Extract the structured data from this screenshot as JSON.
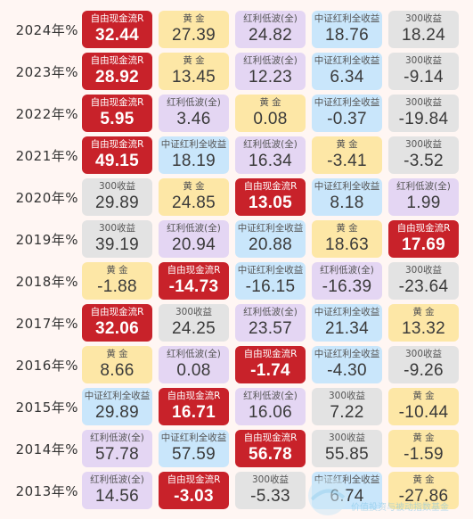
{
  "chart_data": {
    "type": "table",
    "years": [
      "2024年%",
      "2023年%",
      "2022年%",
      "2021年%",
      "2020年%",
      "2019年%",
      "2018年%",
      "2017年%",
      "2016年%",
      "2015年%",
      "2014年%",
      "2013年%"
    ],
    "rows": [
      [
        {
          "label": "自由现金流R",
          "value": "32.44"
        },
        {
          "label": "黄 金",
          "value": "27.39"
        },
        {
          "label": "红利低波(全)",
          "value": "24.82"
        },
        {
          "label": "中证红利全收益",
          "value": "18.76"
        },
        {
          "label": "300收益",
          "value": "18.24"
        }
      ],
      [
        {
          "label": "自由现金流R",
          "value": "28.92"
        },
        {
          "label": "黄 金",
          "value": "13.45"
        },
        {
          "label": "红利低波(全)",
          "value": "12.23"
        },
        {
          "label": "中证红利全收益",
          "value": "6.34"
        },
        {
          "label": "300收益",
          "value": "-9.14"
        }
      ],
      [
        {
          "label": "自由现金流R",
          "value": "5.95"
        },
        {
          "label": "红利低波(全)",
          "value": "3.46"
        },
        {
          "label": "黄 金",
          "value": "0.08"
        },
        {
          "label": "中证红利全收益",
          "value": "-0.37"
        },
        {
          "label": "300收益",
          "value": "-19.84"
        }
      ],
      [
        {
          "label": "自由现金流R",
          "value": "49.15"
        },
        {
          "label": "中证红利全收益",
          "value": "18.19"
        },
        {
          "label": "红利低波(全)",
          "value": "16.34"
        },
        {
          "label": "黄 金",
          "value": "-3.41"
        },
        {
          "label": "300收益",
          "value": "-3.52"
        }
      ],
      [
        {
          "label": "300收益",
          "value": "29.89"
        },
        {
          "label": "黄 金",
          "value": "24.85"
        },
        {
          "label": "自由现金流R",
          "value": "13.05"
        },
        {
          "label": "中证红利全收益",
          "value": "8.18"
        },
        {
          "label": "红利低波(全)",
          "value": "1.99"
        }
      ],
      [
        {
          "label": "300收益",
          "value": "39.19"
        },
        {
          "label": "红利低波(全)",
          "value": "20.94"
        },
        {
          "label": "中证红利全收益",
          "value": "20.88"
        },
        {
          "label": "黄 金",
          "value": "18.63"
        },
        {
          "label": "自由现金流R",
          "value": "17.69"
        }
      ],
      [
        {
          "label": "黄 金",
          "value": "-1.88"
        },
        {
          "label": "自由现金流R",
          "value": "-14.73"
        },
        {
          "label": "中证红利全收益",
          "value": "-16.15"
        },
        {
          "label": "红利低波(全)",
          "value": "-16.39"
        },
        {
          "label": "300收益",
          "value": "-23.64"
        }
      ],
      [
        {
          "label": "自由现金流R",
          "value": "32.06"
        },
        {
          "label": "300收益",
          "value": "24.25"
        },
        {
          "label": "红利低波(全)",
          "value": "23.57"
        },
        {
          "label": "中证红利全收益",
          "value": "21.34"
        },
        {
          "label": "黄 金",
          "value": "13.32"
        }
      ],
      [
        {
          "label": "黄 金",
          "value": "8.66"
        },
        {
          "label": "红利低波(全)",
          "value": "0.08"
        },
        {
          "label": "自由现金流R",
          "value": "-1.74"
        },
        {
          "label": "中证红利全收益",
          "value": "-4.30"
        },
        {
          "label": "300收益",
          "value": "-9.26"
        }
      ],
      [
        {
          "label": "中证红利全收益",
          "value": "29.89"
        },
        {
          "label": "自由现金流R",
          "value": "16.71"
        },
        {
          "label": "红利低波(全)",
          "value": "16.06"
        },
        {
          "label": "300收益",
          "value": "7.22"
        },
        {
          "label": "黄 金",
          "value": "-10.44"
        }
      ],
      [
        {
          "label": "红利低波(全)",
          "value": "57.78"
        },
        {
          "label": "中证红利全收益",
          "value": "57.59"
        },
        {
          "label": "自由现金流R",
          "value": "56.78"
        },
        {
          "label": "300收益",
          "value": "55.85"
        },
        {
          "label": "黄 金",
          "value": "-1.59"
        }
      ],
      [
        {
          "label": "红利低波(全)",
          "value": "14.56"
        },
        {
          "label": "自由现金流R",
          "value": "-3.03"
        },
        {
          "label": "300收益",
          "value": "-5.33"
        },
        {
          "label": "中证红利全收益",
          "value": "6.74"
        },
        {
          "label": "黄 金",
          "value": "-27.86"
        }
      ]
    ]
  },
  "colors": {
    "自由现金流R": "#c8222a",
    "黄 金": "#fde7a6",
    "红利低波(全)": "#e4d6f3",
    "中证红利全收益": "#c9e6fb",
    "300收益": "#e3e3e3",
    "background": "#fff6f3"
  },
  "watermark": {
    "text": "价值投资与被动指数基金"
  }
}
